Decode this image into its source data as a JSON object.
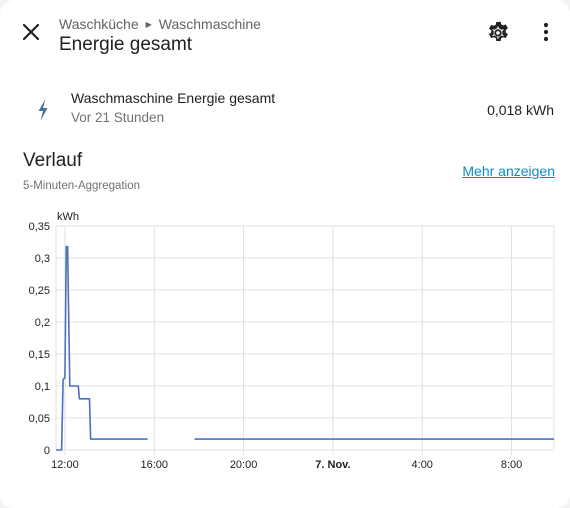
{
  "header": {
    "breadcrumb": [
      "Waschküche",
      "Waschmaschine"
    ],
    "title": "Energie gesamt",
    "icons": {
      "close": "close-icon",
      "settings": "cog-icon",
      "more": "dots-vertical-icon"
    }
  },
  "entity": {
    "icon": "lightning-bolt-icon",
    "name": "Waschmaschine Energie gesamt",
    "last_changed": "Vor 21 Stunden",
    "state": "0,018 kWh"
  },
  "history": {
    "title": "Verlauf",
    "subtitle": "5-Minuten-Aggregation",
    "more_link": "Mehr anzeigen"
  },
  "colors": {
    "line": "#4a72c0",
    "grid": "#e0e0e0",
    "link": "#0a8ac4"
  },
  "chart_data": {
    "type": "line",
    "unit_label": "kWh",
    "xlabel": "",
    "ylabel": "",
    "ylim": [
      0,
      0.35
    ],
    "yticks": [
      "0",
      "0,05",
      "0,1",
      "0,15",
      "0,2",
      "0,25",
      "0,3",
      "0,35"
    ],
    "xlim": [
      11.6,
      33.9
    ],
    "xticks": [
      {
        "label": "12:00",
        "h": 12,
        "bold": false
      },
      {
        "label": "16:00",
        "h": 16,
        "bold": false
      },
      {
        "label": "20:00",
        "h": 20,
        "bold": false
      },
      {
        "label": "7. Nov.",
        "h": 24,
        "bold": true
      },
      {
        "label": "4:00",
        "h": 28,
        "bold": false
      },
      {
        "label": "8:00",
        "h": 32,
        "bold": false
      }
    ],
    "series": [
      {
        "segments": [
          [
            [
              11.6,
              0
            ],
            [
              11.85,
              0
            ],
            [
              11.92,
              0.11
            ],
            [
              12.0,
              0.113
            ],
            [
              12.06,
              0.318
            ],
            [
              12.12,
              0.318
            ],
            [
              12.22,
              0.1
            ],
            [
              12.55,
              0.1
            ],
            [
              12.6,
              0.1
            ],
            [
              12.65,
              0.08
            ],
            [
              13.1,
              0.08
            ],
            [
              13.15,
              0.017
            ],
            [
              15.7,
              0.017
            ]
          ],
          [
            [
              17.8,
              0.017
            ],
            [
              33.9,
              0.017
            ]
          ]
        ]
      }
    ]
  }
}
